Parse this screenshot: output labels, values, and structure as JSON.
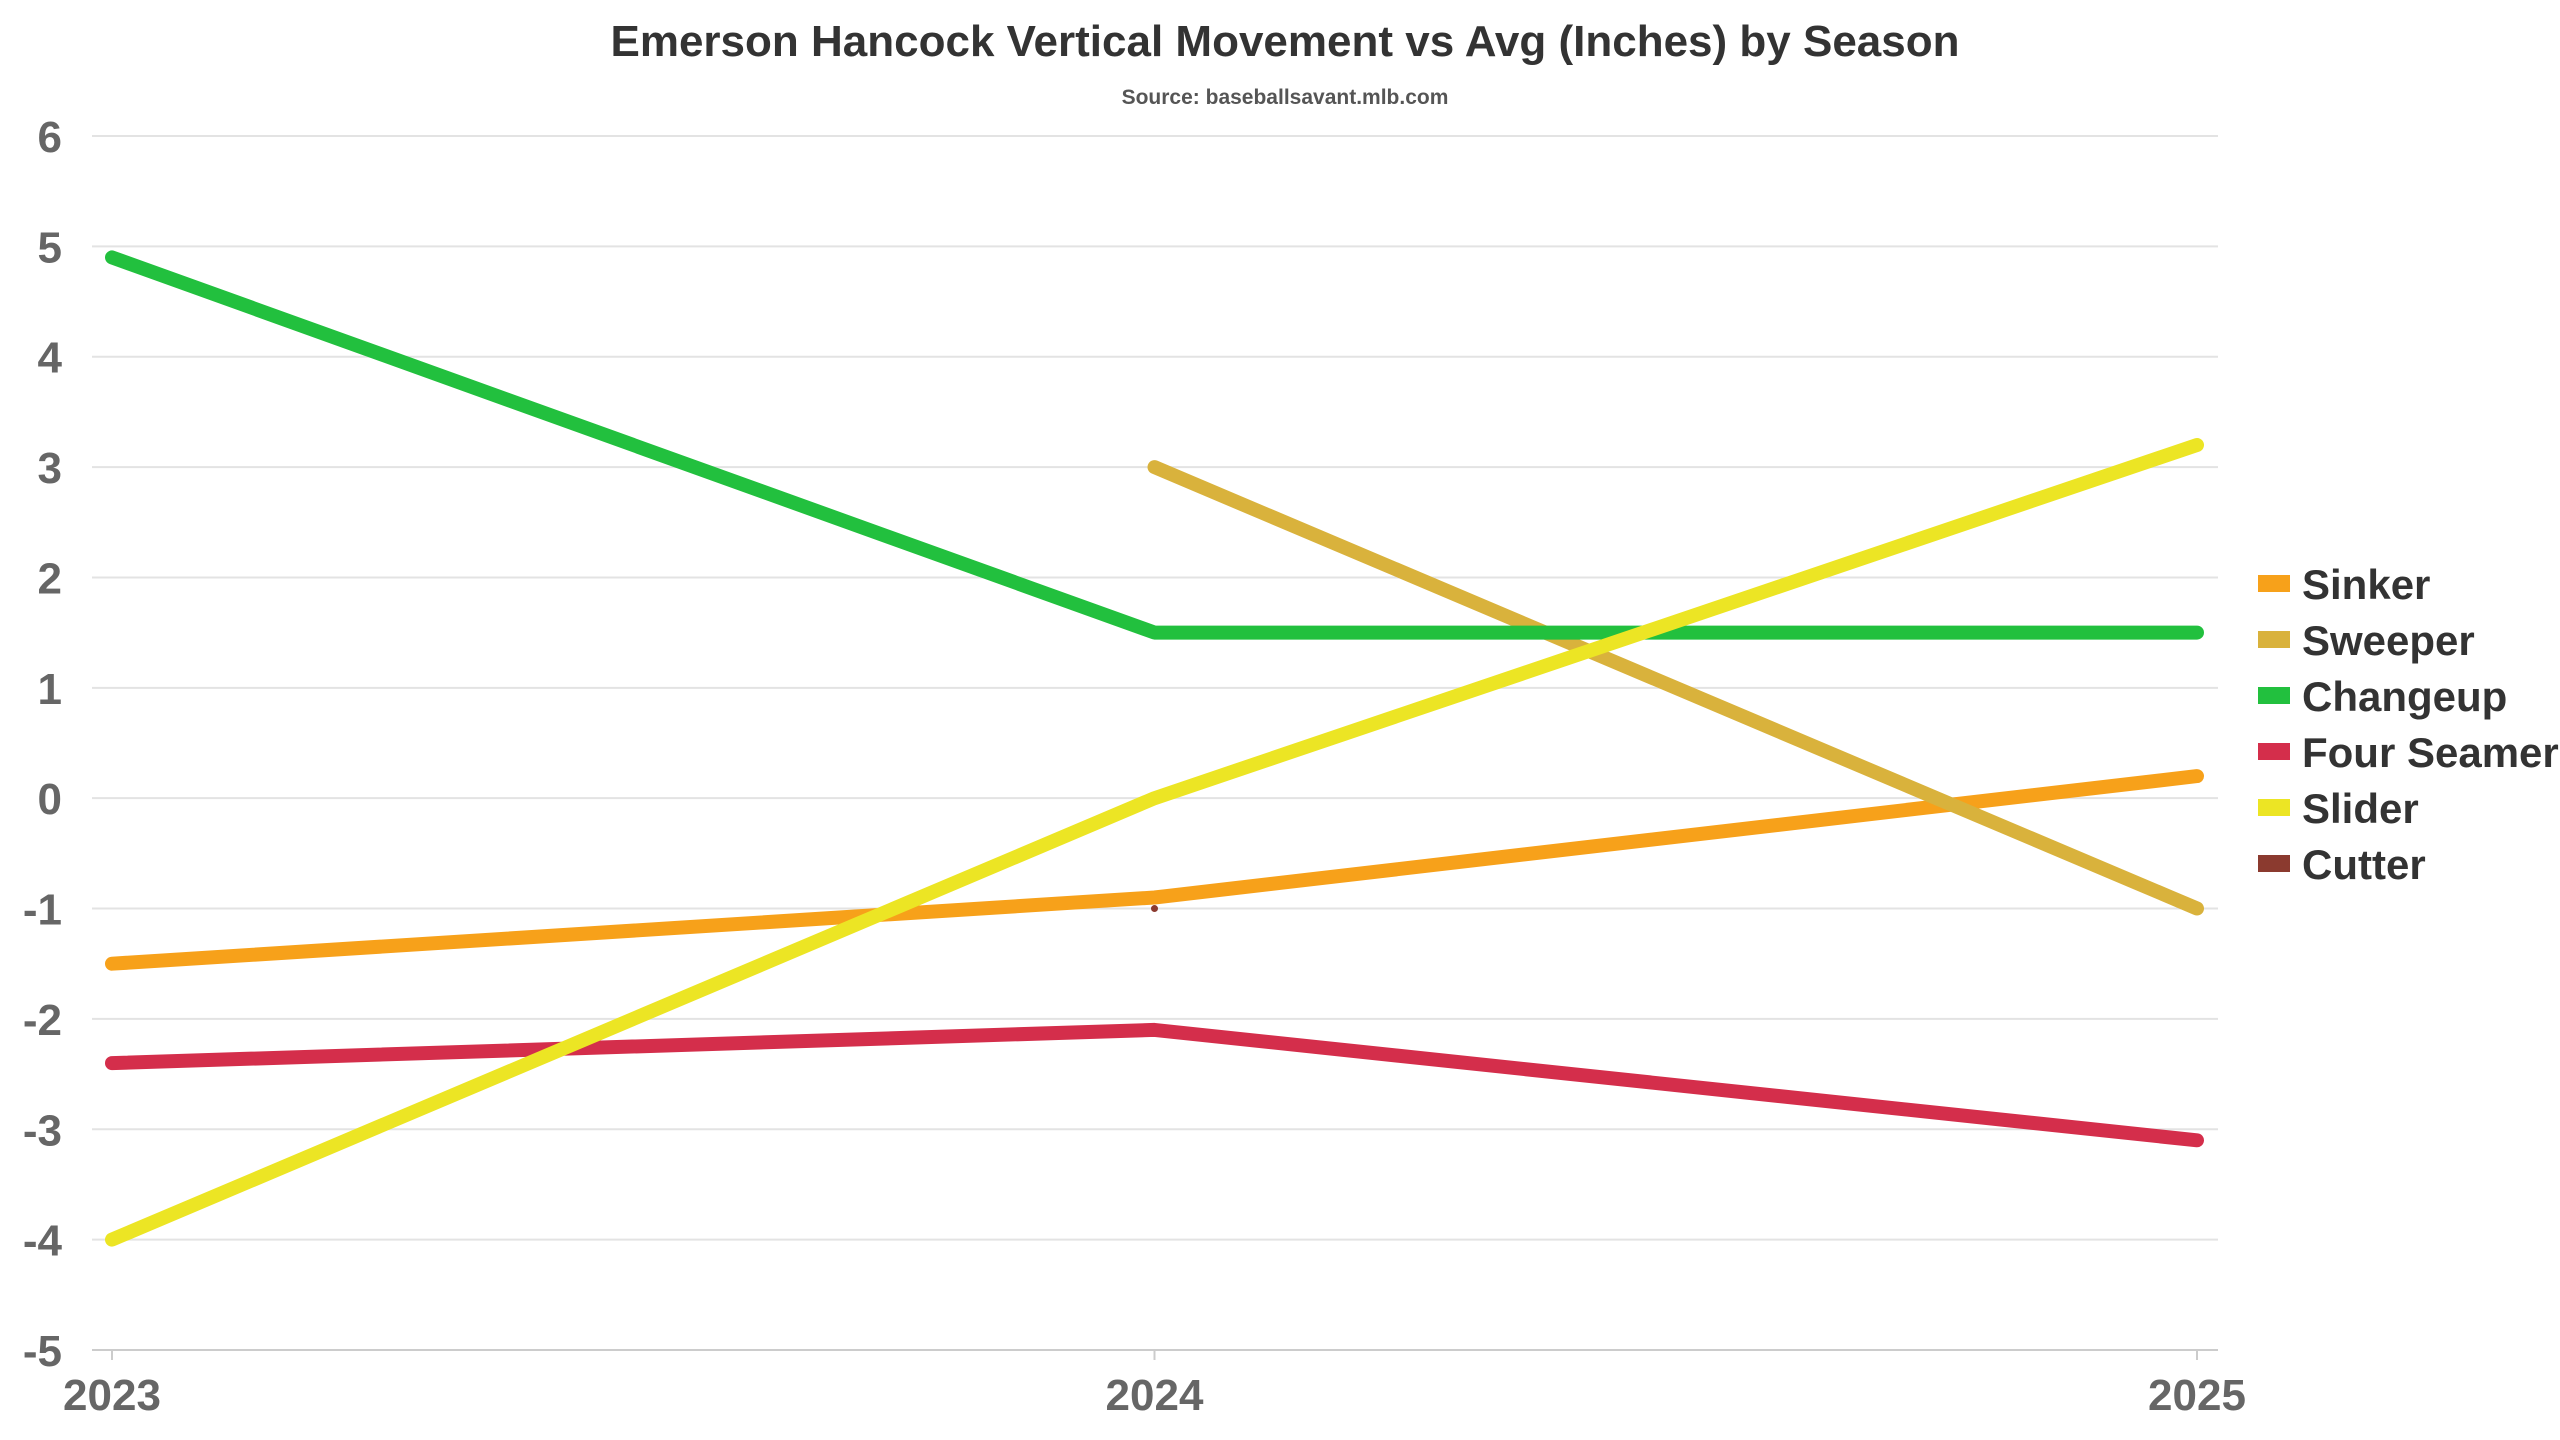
{
  "chart_data": {
    "type": "line",
    "title": "Emerson Hancock Vertical Movement vs Avg (Inches) by Season",
    "subtitle": "Source: baseballsavant.mlb.com",
    "xlabel": "",
    "ylabel": "",
    "x": [
      "2023",
      "2024",
      "2025"
    ],
    "ylim": [
      -5,
      6
    ],
    "yticks": [
      "6",
      "5",
      "4",
      "3",
      "2",
      "1",
      "0",
      "-1",
      "-2",
      "-3",
      "-4",
      "-5"
    ],
    "grid": true,
    "legend_position": "right",
    "series": [
      {
        "name": "Sinker",
        "color": "#f7a11a",
        "values": [
          -1.5,
          -0.9,
          0.2
        ]
      },
      {
        "name": "Sweeper",
        "color": "#d9b23c",
        "values": [
          null,
          3.0,
          -1.0
        ]
      },
      {
        "name": "Changeup",
        "color": "#22c03e",
        "values": [
          4.9,
          1.5,
          1.5
        ]
      },
      {
        "name": "Four Seamer",
        "color": "#d42e4b",
        "values": [
          -2.4,
          -2.1,
          -3.1
        ]
      },
      {
        "name": "Slider",
        "color": "#ece524",
        "values": [
          -4.0,
          0.0,
          3.2
        ]
      },
      {
        "name": "Cutter",
        "color": "#8b3a2f",
        "values": [
          null,
          -1.0,
          null
        ]
      }
    ]
  }
}
